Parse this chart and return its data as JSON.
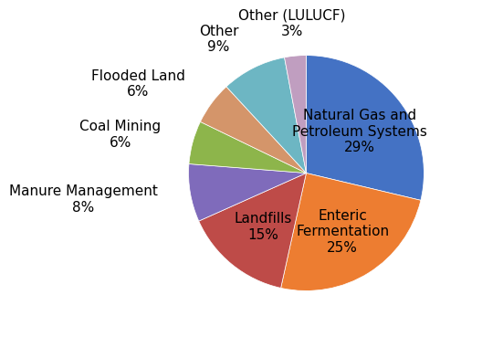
{
  "slices": [
    {
      "label": "Natural Gas and\nPetroleum Systems\n29%",
      "value": 29,
      "color": "#4472C4",
      "inside": true
    },
    {
      "label": "Enteric\nFermentation\n25%",
      "value": 25,
      "color": "#ED7D31",
      "inside": true
    },
    {
      "label": "Landfills\n15%",
      "value": 15,
      "color": "#BE4B48",
      "inside": true
    },
    {
      "label": "Manure Management\n8%",
      "value": 8,
      "color": "#7F6BBB",
      "inside": false
    },
    {
      "label": "Coal Mining\n6%",
      "value": 6,
      "color": "#8DB54B",
      "inside": false
    },
    {
      "label": "Flooded Land\n6%",
      "value": 6,
      "color": "#D4956A",
      "inside": false
    },
    {
      "label": "Other\n9%",
      "value": 9,
      "color": "#6DB6C3",
      "inside": false
    },
    {
      "label": "Other (LULUCF)\n3%",
      "value": 3,
      "color": "#C09EC0",
      "inside": false
    }
  ],
  "startangle": 90,
  "background_color": "#ffffff",
  "font_size": 11,
  "inside_font_size": 11
}
